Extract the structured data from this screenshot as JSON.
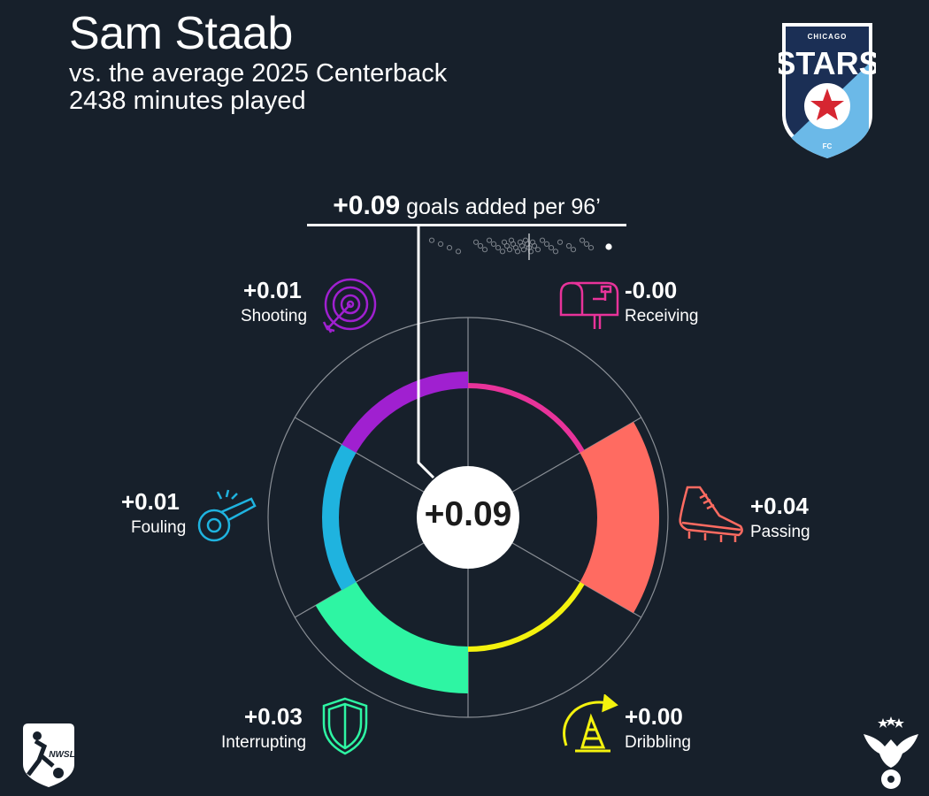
{
  "header": {
    "title": "Sam Staab",
    "subtitle_line1": "vs. the average 2025 Centerback",
    "subtitle_line2": "2438 minutes played"
  },
  "headline": {
    "value": "+0.09",
    "text": "goals added per 96’"
  },
  "center_value": "+0.09",
  "colors": {
    "background": "#17202b",
    "shooting": "#a020d0",
    "receiving": "#e8339a",
    "passing": "#ff6b61",
    "dribbling": "#f4f20e",
    "interrupting": "#2ef5a3",
    "fouling": "#1fb3df",
    "crest_blue": "#1b2f55",
    "crest_light": "#6bb9e8"
  },
  "logos": {
    "team_top": "CHICAGO",
    "team_name": "STARS",
    "team_bottom": "FC",
    "league": "NWSL"
  },
  "chart_data": {
    "type": "radial-bar",
    "units": "goals added per 96'",
    "total": 0.09,
    "categories": [
      "Receiving",
      "Passing",
      "Dribbling",
      "Interrupting",
      "Fouling",
      "Shooting"
    ],
    "labels": [
      "-0.00",
      "+0.04",
      "+0.00",
      "+0.03",
      "+0.01",
      "+0.01"
    ],
    "values": [
      -0.001,
      0.04,
      0.001,
      0.03,
      0.01,
      0.01
    ],
    "icons": [
      "mailbox-icon",
      "cleat-icon",
      "cone-icon",
      "shield-icon",
      "whistle-icon",
      "target-icon"
    ],
    "distribution": {
      "description": "goals added of other 2025 centerbacks",
      "values": [
        -0.11,
        -0.1,
        -0.09,
        -0.08,
        -0.06,
        -0.055,
        -0.05,
        -0.045,
        -0.04,
        -0.035,
        -0.03,
        -0.028,
        -0.025,
        -0.022,
        -0.02,
        -0.018,
        -0.015,
        -0.013,
        -0.01,
        -0.008,
        -0.006,
        -0.004,
        -0.002,
        0.0,
        0.002,
        0.004,
        0.006,
        0.01,
        0.015,
        0.02,
        0.025,
        0.03,
        0.035,
        0.045,
        0.05,
        0.06,
        0.065,
        0.07
      ],
      "average": 0.0,
      "player": 0.09,
      "range": [
        -0.12,
        0.1
      ]
    }
  }
}
